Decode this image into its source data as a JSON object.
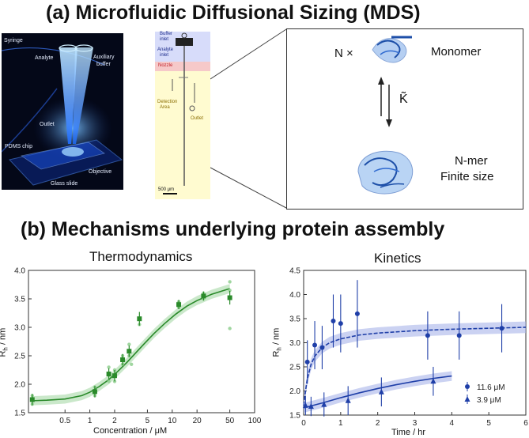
{
  "panel_a": {
    "title": "(a) Microfluidic Diffusional Sizing (MDS)",
    "photo_labels": {
      "syringe": "Syringe",
      "analyte": "Analyte",
      "auxiliary": "Auxiliary",
      "buffer": "buffer",
      "outlet": "Outlet",
      "pdms_chip": "PDMS chip",
      "objective": "Objective",
      "glass_slide": "Glass slide"
    },
    "schematic_labels": {
      "buffer_inlet_1": "Buffer",
      "buffer_inlet_2": "inlet",
      "analyte_inlet_1": "Analyte",
      "analyte_inlet_2": "inlet",
      "nozzle": "Nozzle",
      "detection_1": "Detection",
      "detection_2": "Area",
      "outlet": "Outlet",
      "scale": "500 μm"
    },
    "assembly": {
      "n_times": "N ×",
      "monomer": "Monomer",
      "k_symbol": "K̃",
      "nmer_1": "N-mer",
      "nmer_2": "Finite size"
    }
  },
  "panel_b": {
    "title": "(b) Mechanisms underlying protein assembly"
  },
  "colors": {
    "thermo_green": "#2a8a2a",
    "thermo_band": "#a6d8a6",
    "kinetic_blue": "#1f3fa8",
    "kinetic_band": "#a9b4ea"
  },
  "chart_data": [
    {
      "type": "scatter",
      "title": "Thermodynamics",
      "xlabel": "Concentration / μM",
      "ylabel": "R_h / nm",
      "ylabel_main": "R",
      "ylabel_sub": "h",
      "ylabel_rest": " / nm",
      "xscale": "log",
      "xlim": [
        0.18,
        100
      ],
      "ylim": [
        1.5,
        4.0
      ],
      "xticks": [
        0.5,
        1,
        2,
        5,
        10,
        20,
        50,
        100
      ],
      "xtick_labels": [
        "0.5",
        "1",
        "2",
        "5",
        "10",
        "20",
        "50",
        "100"
      ],
      "yticks": [
        1.5,
        2.0,
        2.5,
        3.0,
        3.5,
        4.0
      ],
      "ytick_labels": [
        "1.5",
        "2.0",
        "2.5",
        "3.0",
        "3.5",
        "4.0"
      ],
      "means": [
        {
          "x": 0.2,
          "y": 1.73,
          "err": 0.1
        },
        {
          "x": 1.15,
          "y": 1.87,
          "err": 0.1
        },
        {
          "x": 1.7,
          "y": 2.18,
          "err": 0.1
        },
        {
          "x": 2.0,
          "y": 2.15,
          "err": 0.1
        },
        {
          "x": 2.5,
          "y": 2.43,
          "err": 0.1
        },
        {
          "x": 3.0,
          "y": 2.58,
          "err": 0.1
        },
        {
          "x": 4.0,
          "y": 3.15,
          "err": 0.12
        },
        {
          "x": 12.0,
          "y": 3.4,
          "err": 0.08
        },
        {
          "x": 24.0,
          "y": 3.55,
          "err": 0.08
        },
        {
          "x": 50.0,
          "y": 3.52,
          "err": 0.12
        }
      ],
      "replicates": [
        {
          "x": 0.2,
          "y": 1.65
        },
        {
          "x": 0.2,
          "y": 1.8
        },
        {
          "x": 1.15,
          "y": 1.8
        },
        {
          "x": 1.15,
          "y": 1.95
        },
        {
          "x": 1.7,
          "y": 2.05
        },
        {
          "x": 1.7,
          "y": 2.3
        },
        {
          "x": 2.0,
          "y": 2.05
        },
        {
          "x": 2.0,
          "y": 2.25
        },
        {
          "x": 2.5,
          "y": 2.35
        },
        {
          "x": 2.5,
          "y": 2.5
        },
        {
          "x": 3.0,
          "y": 2.5
        },
        {
          "x": 3.0,
          "y": 2.7
        },
        {
          "x": 3.2,
          "y": 2.35
        },
        {
          "x": 4.0,
          "y": 3.05
        },
        {
          "x": 12.0,
          "y": 3.35
        },
        {
          "x": 12.0,
          "y": 3.45
        },
        {
          "x": 24.0,
          "y": 3.5
        },
        {
          "x": 24.0,
          "y": 3.6
        },
        {
          "x": 50.0,
          "y": 3.8
        },
        {
          "x": 50.0,
          "y": 3.65
        },
        {
          "x": 50.0,
          "y": 2.98
        }
      ],
      "fit": {
        "x": [
          0.2,
          0.3,
          0.5,
          0.8,
          1.0,
          1.3,
          1.7,
          2.2,
          2.8,
          3.5,
          4.5,
          6.0,
          8.0,
          11.0,
          15.0,
          20.0,
          30.0,
          50.0
        ],
        "y": [
          1.71,
          1.72,
          1.74,
          1.8,
          1.86,
          1.96,
          2.08,
          2.23,
          2.38,
          2.53,
          2.7,
          2.89,
          3.06,
          3.23,
          3.37,
          3.47,
          3.58,
          3.68
        ],
        "band": 0.08
      }
    },
    {
      "type": "scatter",
      "title": "Kinetics",
      "xlabel": "Time / hr",
      "ylabel": "R_h / nm",
      "ylabel_main": "R",
      "ylabel_sub": "h",
      "ylabel_rest": " / nm",
      "xlim": [
        0,
        6
      ],
      "ylim": [
        1.5,
        4.5
      ],
      "xticks": [
        0,
        1,
        2,
        3,
        4,
        5,
        6
      ],
      "xtick_labels": [
        "0",
        "1",
        "2",
        "3",
        "4",
        "5",
        "6"
      ],
      "yticks": [
        1.5,
        2.0,
        2.5,
        3.0,
        3.5,
        4.0,
        4.5
      ],
      "ytick_labels": [
        "1.5",
        "2.0",
        "2.5",
        "3.0",
        "3.5",
        "4.0",
        "4.5"
      ],
      "legend": "bottom-right",
      "series": [
        {
          "name": "11.6 μM",
          "marker": "circle",
          "points": [
            {
              "x": 0.1,
              "y": 2.6,
              "err": 0.45
            },
            {
              "x": 0.3,
              "y": 2.95,
              "err": 0.5
            },
            {
              "x": 0.5,
              "y": 2.9,
              "err": 0.45
            },
            {
              "x": 0.8,
              "y": 3.45,
              "err": 0.55
            },
            {
              "x": 1.0,
              "y": 3.4,
              "err": 0.6
            },
            {
              "x": 1.45,
              "y": 3.6,
              "err": 0.7
            },
            {
              "x": 3.35,
              "y": 3.15,
              "err": 0.5
            },
            {
              "x": 4.2,
              "y": 3.15,
              "err": 0.5
            },
            {
              "x": 5.35,
              "y": 3.3,
              "err": 0.5
            }
          ],
          "fit": {
            "x": [
              0,
              0.05,
              0.1,
              0.2,
              0.3,
              0.5,
              0.7,
              1.0,
              1.5,
              2.0,
              3.0,
              4.0,
              5.0,
              6.0
            ],
            "y": [
              1.7,
              2.0,
              2.25,
              2.55,
              2.72,
              2.9,
              3.0,
              3.08,
              3.16,
              3.2,
              3.25,
              3.28,
              3.3,
              3.32
            ],
            "band": 0.12
          }
        },
        {
          "name": "3.9 μM",
          "marker": "triangle",
          "points": [
            {
              "x": 0.05,
              "y": 1.7,
              "err": 0.2
            },
            {
              "x": 0.2,
              "y": 1.68,
              "err": 0.2
            },
            {
              "x": 0.55,
              "y": 1.72,
              "err": 0.25
            },
            {
              "x": 1.2,
              "y": 1.8,
              "err": 0.3
            },
            {
              "x": 2.1,
              "y": 1.98,
              "err": 0.3
            },
            {
              "x": 3.5,
              "y": 2.2,
              "err": 0.3
            }
          ],
          "fit": {
            "x": [
              0,
              0.5,
              1.0,
              1.5,
              2.0,
              2.5,
              3.0,
              3.5,
              4.0
            ],
            "y": [
              1.65,
              1.75,
              1.86,
              1.96,
              2.05,
              2.13,
              2.2,
              2.26,
              2.31
            ],
            "band": 0.1
          }
        }
      ]
    }
  ]
}
